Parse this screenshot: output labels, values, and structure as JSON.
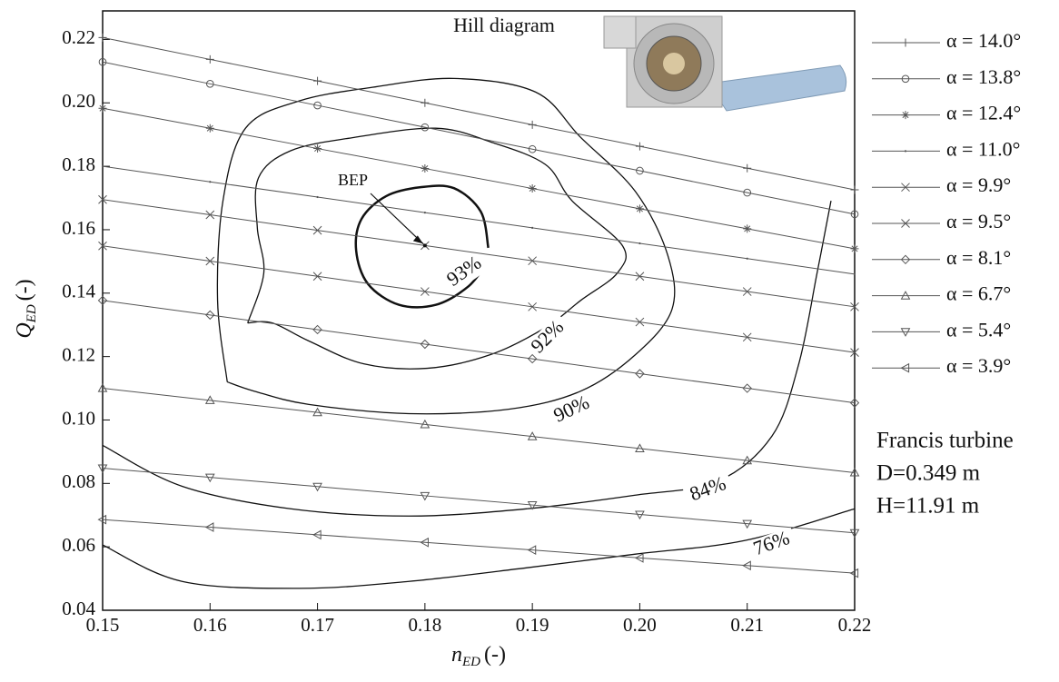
{
  "chart_data": {
    "type": "hill",
    "title": "Hill diagram",
    "x_label": {
      "main": "n",
      "sub": "ED",
      "unit": "(-)"
    },
    "y_label": {
      "main": "Q",
      "sub": "ED",
      "unit": "(-)"
    },
    "xlim": [
      0.15,
      0.22
    ],
    "ylim": [
      0.04,
      0.229
    ],
    "xticks": [
      0.15,
      0.16,
      0.17,
      0.18,
      0.19,
      {
        "value": 0.2,
        "label": "0.20"
      },
      0.21,
      0.22
    ],
    "yticks": [
      0.04,
      0.06,
      0.08,
      {
        "value": 0.1,
        "label": "0.10"
      },
      0.12,
      0.14,
      0.16,
      0.18,
      {
        "value": 0.2,
        "label": "0.20"
      },
      0.22
    ],
    "x": [
      0.15,
      0.16,
      0.17,
      0.18,
      0.19,
      0.2,
      0.21,
      0.22
    ],
    "series": [
      {
        "name": "α = 14.0°",
        "marker": "plus",
        "color": "#555555",
        "values": [
          0.2206,
          0.2137,
          0.2069,
          0.2,
          0.1931,
          0.1863,
          0.1794,
          0.1726
        ]
      },
      {
        "name": "α = 13.8°",
        "marker": "circle",
        "color": "#555555",
        "values": [
          0.2129,
          0.206,
          0.1992,
          0.1923,
          0.1854,
          0.1786,
          0.1717,
          0.1649
        ]
      },
      {
        "name": "α = 12.4°",
        "marker": "star",
        "color": "#555555",
        "values": [
          0.1983,
          0.192,
          0.1856,
          0.1793,
          0.173,
          0.1666,
          0.1603,
          0.154
        ]
      },
      {
        "name": "α = 11.0°",
        "marker": "none",
        "color": "#555555",
        "values": [
          0.18,
          0.1751,
          0.1703,
          0.1654,
          0.1606,
          0.1557,
          0.1509,
          0.146
        ]
      },
      {
        "name": "α = 9.9°",
        "marker": "x",
        "color": "#555555",
        "values": [
          0.1695,
          0.1647,
          0.1598,
          0.155,
          0.1502,
          0.1453,
          0.1405,
          0.1357
        ]
      },
      {
        "name": "α = 9.5°",
        "marker": "x",
        "color": "#555555",
        "values": [
          0.1549,
          0.1501,
          0.1453,
          0.1405,
          0.1357,
          0.1309,
          0.1261,
          0.1213
        ]
      },
      {
        "name": "α = 8.1°",
        "marker": "diamond",
        "color": "#555555",
        "values": [
          0.1377,
          0.1331,
          0.1285,
          0.1239,
          0.1193,
          0.1146,
          0.11,
          0.1054
        ]
      },
      {
        "name": "α = 6.7°",
        "marker": "triangle-up",
        "color": "#555555",
        "values": [
          0.11,
          0.1062,
          0.1024,
          0.0986,
          0.0948,
          0.091,
          0.0872,
          0.0834
        ]
      },
      {
        "name": "α = 5.4°",
        "marker": "triangle-down",
        "color": "#555555",
        "values": [
          0.0848,
          0.0819,
          0.079,
          0.0761,
          0.0732,
          0.0702,
          0.0673,
          0.0644
        ]
      },
      {
        "name": "α = 3.9°",
        "marker": "triangle-left",
        "color": "#555555",
        "values": [
          0.0686,
          0.0662,
          0.0638,
          0.0614,
          0.059,
          0.0565,
          0.0541,
          0.0517
        ]
      }
    ],
    "contours": [
      {
        "label": "93%",
        "width": 2.5,
        "x": [
          0.1859,
          0.1852,
          0.1827,
          0.1796,
          0.1764,
          0.1741,
          0.1736,
          0.1747,
          0.1776,
          0.181,
          0.184,
          0.1857
        ],
        "y": [
          0.1543,
          0.1657,
          0.1731,
          0.1734,
          0.1706,
          0.1634,
          0.1534,
          0.1429,
          0.1363,
          0.1363,
          0.142,
          0.1491
        ]
      },
      {
        "label": "92%",
        "width": 1.3,
        "x": [
          0.1635,
          0.165,
          0.1644,
          0.1645,
          0.1675,
          0.1734,
          0.181,
          0.1861,
          0.1912,
          0.1937,
          0.1984,
          0.1979,
          0.1945,
          0.1912,
          0.1861,
          0.1802,
          0.1743,
          0.1692,
          0.1658,
          0.1635
        ],
        "y": [
          0.1306,
          0.1463,
          0.1606,
          0.1763,
          0.1849,
          0.1891,
          0.192,
          0.1877,
          0.1806,
          0.1691,
          0.1549,
          0.1463,
          0.1377,
          0.1291,
          0.1206,
          0.1163,
          0.1177,
          0.1249,
          0.1306,
          0.1306
        ]
      },
      {
        "label": "90%",
        "width": 1.3,
        "x": [
          0.1616,
          0.1607,
          0.1612,
          0.1633,
          0.1683,
          0.1751,
          0.1827,
          0.1903,
          0.1945,
          0.1996,
          0.2026,
          0.203,
          0.1996,
          0.1945,
          0.1878,
          0.1785,
          0.1692,
          0.1641,
          0.1616
        ],
        "y": [
          0.112,
          0.1377,
          0.1691,
          0.192,
          0.2006,
          0.2049,
          0.2077,
          0.2034,
          0.1891,
          0.172,
          0.152,
          0.1349,
          0.1206,
          0.1091,
          0.1034,
          0.102,
          0.1049,
          0.1091,
          0.112
        ]
      },
      {
        "label": "84%",
        "width": 1.3,
        "x": [
          0.15,
          0.1574,
          0.1675,
          0.1785,
          0.1895,
          0.1996,
          0.2072,
          0.2123,
          0.2148,
          0.2165,
          0.2178
        ],
        "y": [
          0.092,
          0.0791,
          0.072,
          0.0697,
          0.072,
          0.0763,
          0.0806,
          0.0949,
          0.1177,
          0.1463,
          0.1691
        ]
      },
      {
        "label": "76%",
        "width": 1.3,
        "x": [
          0.15,
          0.1574,
          0.1683,
          0.1785,
          0.1895,
          0.1996,
          0.2098,
          0.22
        ],
        "y": [
          0.0606,
          0.0491,
          0.0469,
          0.0491,
          0.0534,
          0.0577,
          0.062,
          0.072
        ]
      }
    ],
    "bep": {
      "label": "BEP",
      "x": 0.18,
      "y": 0.155
    },
    "notes": [
      "Francis turbine",
      "D=0.349 m",
      "H=11.91 m"
    ]
  }
}
